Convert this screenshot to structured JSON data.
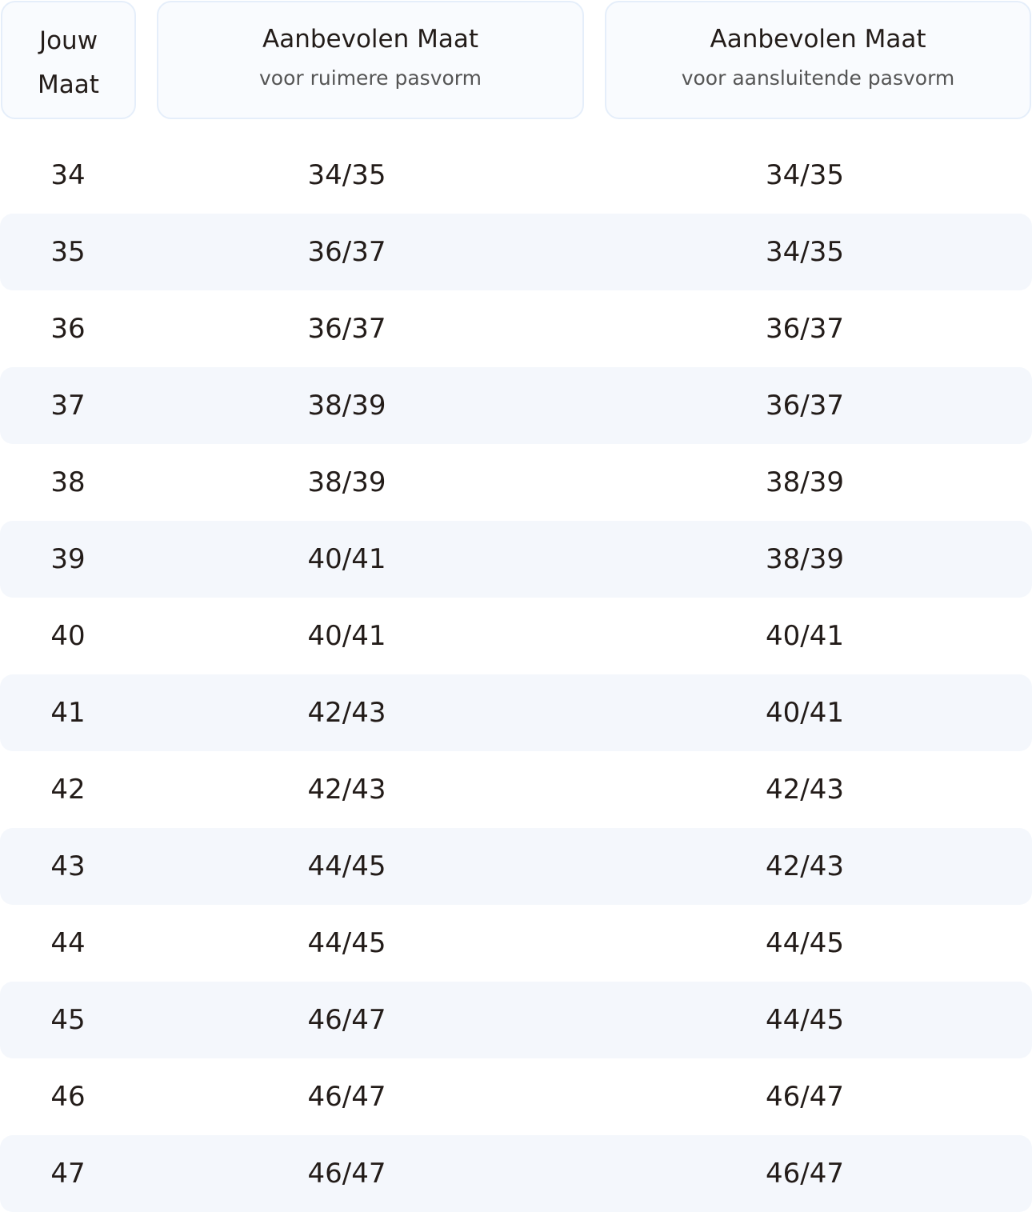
{
  "header": {
    "col1": [
      "Jouw",
      "Maat"
    ],
    "col2": {
      "title": "Aanbevolen Maat",
      "subtitle": "voor ruimere pasvorm"
    },
    "col3": {
      "title": "Aanbevolen Maat",
      "subtitle": "voor aansluitende pasvorm"
    }
  },
  "rows": [
    [
      "34",
      "34/35",
      "34/35"
    ],
    [
      "35",
      "36/37",
      "34/35"
    ],
    [
      "36",
      "36/37",
      "36/37"
    ],
    [
      "37",
      "38/39",
      "36/37"
    ],
    [
      "38",
      "38/39",
      "38/39"
    ],
    [
      "39",
      "40/41",
      "38/39"
    ],
    [
      "40",
      "40/41",
      "40/41"
    ],
    [
      "41",
      "42/43",
      "40/41"
    ],
    [
      "42",
      "42/43",
      "42/43"
    ],
    [
      "43",
      "44/45",
      "42/43"
    ],
    [
      "44",
      "44/45",
      "44/45"
    ],
    [
      "45",
      "46/47",
      "44/45"
    ],
    [
      "46",
      "46/47",
      "46/47"
    ],
    [
      "47",
      "46/47",
      "46/47"
    ]
  ],
  "colors": {
    "stripe": "#f4f7fc",
    "header_border": "#e5eefa",
    "text": "#231c19"
  }
}
